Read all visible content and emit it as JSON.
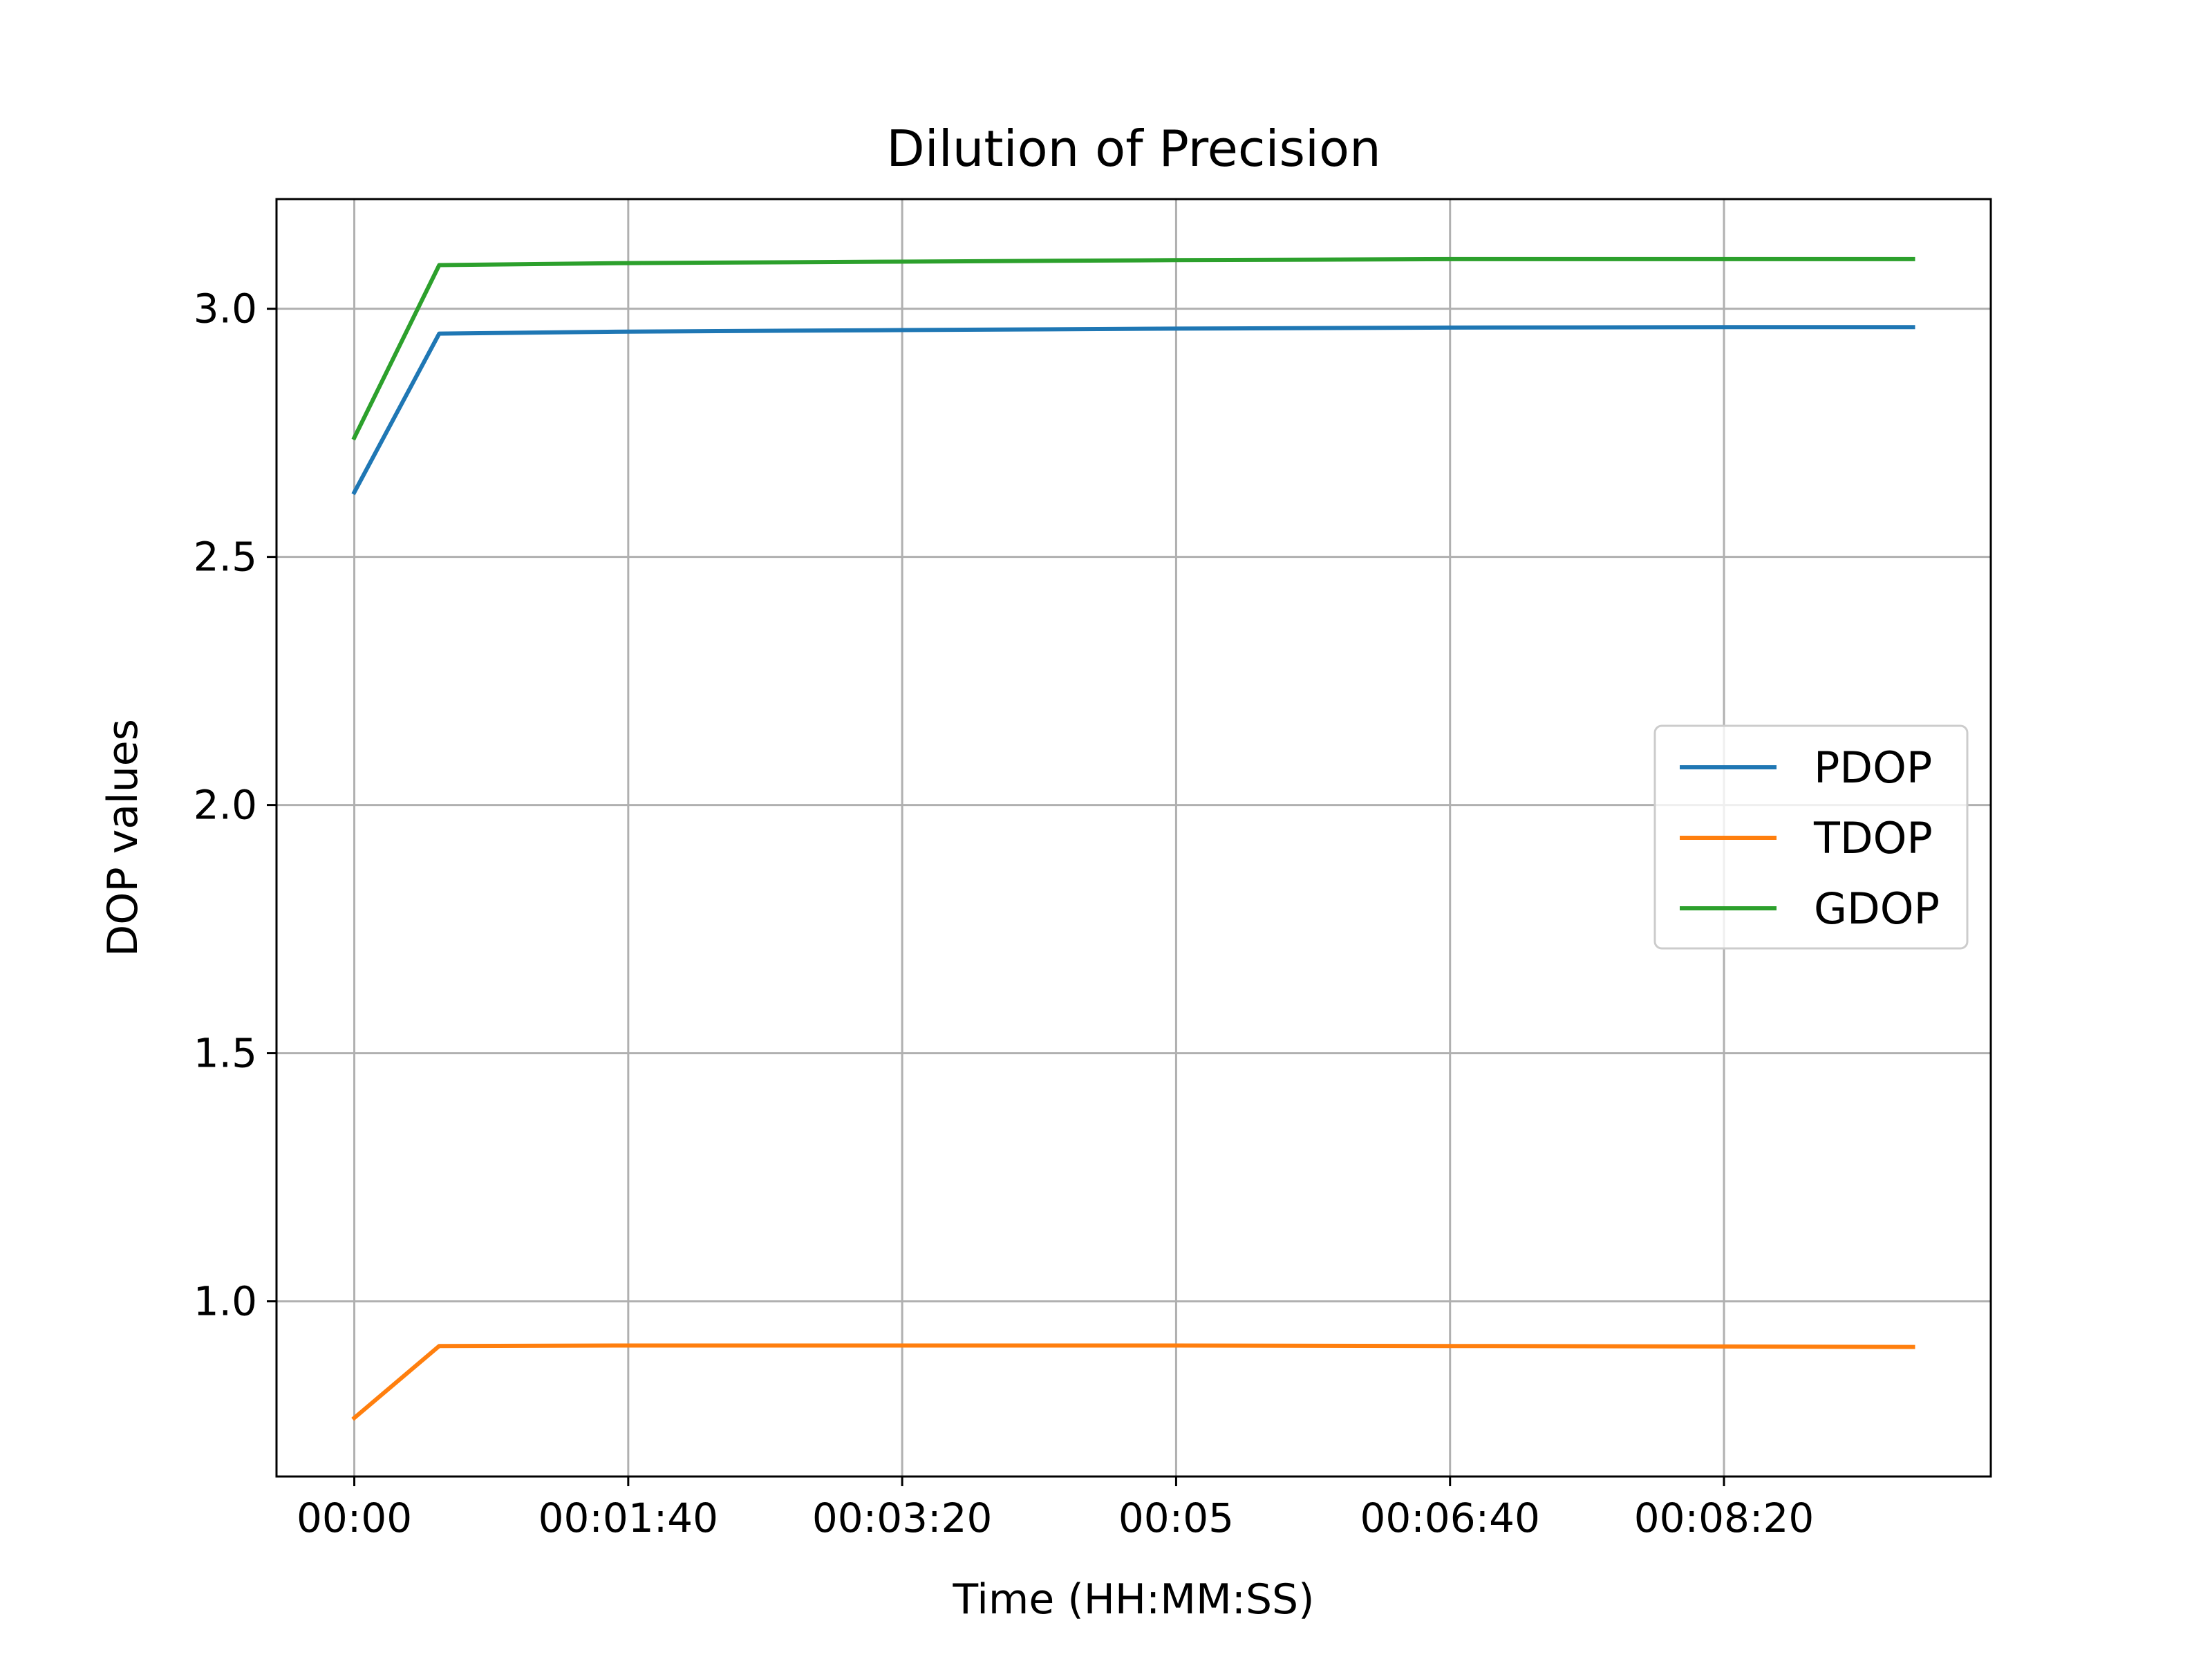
{
  "chart_data": {
    "type": "line",
    "title": "Dilution of Precision",
    "xlabel": "Time (HH:MM:SS)",
    "ylabel": "DOP values",
    "x_unit": "seconds",
    "xlim": [
      -28.4,
      597.4
    ],
    "ylim": [
      0.647,
      3.221
    ],
    "x_ticks": [
      {
        "value": 0,
        "label": "00:00"
      },
      {
        "value": 100,
        "label": "00:01:40"
      },
      {
        "value": 200,
        "label": "00:03:20"
      },
      {
        "value": 300,
        "label": "00:05"
      },
      {
        "value": 400,
        "label": "00:06:40"
      },
      {
        "value": 500,
        "label": "00:08:20"
      }
    ],
    "y_ticks": [
      {
        "value": 1.0,
        "label": "1.0"
      },
      {
        "value": 1.5,
        "label": "1.5"
      },
      {
        "value": 2.0,
        "label": "2.0"
      },
      {
        "value": 2.5,
        "label": "2.5"
      },
      {
        "value": 3.0,
        "label": "3.0"
      }
    ],
    "grid": true,
    "legend_position": "center-right",
    "series": [
      {
        "name": "PDOP",
        "color": "#1f77b4",
        "x": [
          0,
          31,
          100,
          200,
          300,
          400,
          500,
          569
        ],
        "y": [
          2.63,
          2.95,
          2.954,
          2.957,
          2.96,
          2.962,
          2.963,
          2.963
        ]
      },
      {
        "name": "TDOP",
        "color": "#ff7f0e",
        "x": [
          0,
          31,
          100,
          200,
          300,
          400,
          500,
          569
        ],
        "y": [
          0.765,
          0.91,
          0.911,
          0.911,
          0.911,
          0.91,
          0.909,
          0.908
        ]
      },
      {
        "name": "GDOP",
        "color": "#2ca02c",
        "x": [
          0,
          31,
          100,
          200,
          300,
          400,
          500,
          569
        ],
        "y": [
          2.74,
          3.088,
          3.092,
          3.095,
          3.098,
          3.1,
          3.1,
          3.1
        ]
      }
    ]
  }
}
